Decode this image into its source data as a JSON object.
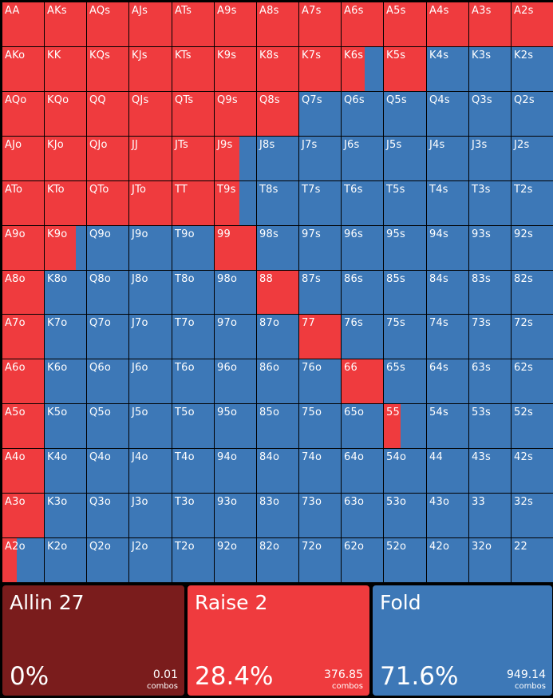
{
  "colors": {
    "raise": "#ef3b3e",
    "fold": "#3d78b7",
    "allin": "#7a1c1c"
  },
  "grid": [
    [
      "AA",
      "AKs",
      "AQs",
      "AJs",
      "ATs",
      "A9s",
      "A8s",
      "A7s",
      "A6s",
      "A5s",
      "A4s",
      "A3s",
      "A2s"
    ],
    [
      "AKo",
      "KK",
      "KQs",
      "KJs",
      "KTs",
      "K9s",
      "K8s",
      "K7s",
      "K6s",
      "K5s",
      "K4s",
      "K3s",
      "K2s"
    ],
    [
      "AQo",
      "KQo",
      "QQ",
      "QJs",
      "QTs",
      "Q9s",
      "Q8s",
      "Q7s",
      "Q6s",
      "Q5s",
      "Q4s",
      "Q3s",
      "Q2s"
    ],
    [
      "AJo",
      "KJo",
      "QJo",
      "JJ",
      "JTs",
      "J9s",
      "J8s",
      "J7s",
      "J6s",
      "J5s",
      "J4s",
      "J3s",
      "J2s"
    ],
    [
      "ATo",
      "KTo",
      "QTo",
      "JTo",
      "TT",
      "T9s",
      "T8s",
      "T7s",
      "T6s",
      "T5s",
      "T4s",
      "T3s",
      "T2s"
    ],
    [
      "A9o",
      "K9o",
      "Q9o",
      "J9o",
      "T9o",
      "99",
      "98s",
      "97s",
      "96s",
      "95s",
      "94s",
      "93s",
      "92s"
    ],
    [
      "A8o",
      "K8o",
      "Q8o",
      "J8o",
      "T8o",
      "98o",
      "88",
      "87s",
      "86s",
      "85s",
      "84s",
      "83s",
      "82s"
    ],
    [
      "A7o",
      "K7o",
      "Q7o",
      "J7o",
      "T7o",
      "97o",
      "87o",
      "77",
      "76s",
      "75s",
      "74s",
      "73s",
      "72s"
    ],
    [
      "A6o",
      "K6o",
      "Q6o",
      "J6o",
      "T6o",
      "96o",
      "86o",
      "76o",
      "66",
      "65s",
      "64s",
      "63s",
      "62s"
    ],
    [
      "A5o",
      "K5o",
      "Q5o",
      "J5o",
      "T5o",
      "95o",
      "85o",
      "75o",
      "65o",
      "55",
      "54s",
      "53s",
      "52s"
    ],
    [
      "A4o",
      "K4o",
      "Q4o",
      "J4o",
      "T4o",
      "94o",
      "84o",
      "74o",
      "64o",
      "54o",
      "44",
      "43s",
      "42s"
    ],
    [
      "A3o",
      "K3o",
      "Q3o",
      "J3o",
      "T3o",
      "93o",
      "83o",
      "73o",
      "63o",
      "53o",
      "43o",
      "33",
      "32s"
    ],
    [
      "A2o",
      "K2o",
      "Q2o",
      "J2o",
      "T2o",
      "92o",
      "82o",
      "72o",
      "62o",
      "52o",
      "42o",
      "32o",
      "22"
    ]
  ],
  "raise_freq": {
    "AA": 1,
    "AKs": 1,
    "AQs": 1,
    "AJs": 1,
    "ATs": 1,
    "A9s": 1,
    "A8s": 1,
    "A7s": 1,
    "A6s": 1,
    "A5s": 1,
    "A4s": 1,
    "A3s": 1,
    "A2s": 1,
    "AKo": 1,
    "KK": 1,
    "KQs": 1,
    "KJs": 1,
    "KTs": 1,
    "K9s": 1,
    "K8s": 1,
    "K7s": 1,
    "K6s": 0.55,
    "K5s": 1,
    "AQo": 1,
    "KQo": 1,
    "QQ": 1,
    "QJs": 1,
    "QTs": 1,
    "Q9s": 1,
    "Q8s": 1,
    "AJo": 1,
    "KJo": 1,
    "QJo": 1,
    "JJ": 1,
    "JTs": 1,
    "J9s": 0.6,
    "ATo": 1,
    "KTo": 1,
    "QTo": 1,
    "JTo": 1,
    "TT": 1,
    "T9s": 0.6,
    "A9o": 1,
    "K9o": 0.75,
    "99": 1,
    "A8o": 1,
    "88": 1,
    "A7o": 1,
    "77": 1,
    "A6o": 1,
    "66": 1,
    "A5o": 1,
    "55": 0.4,
    "A4o": 1,
    "A3o": 1,
    "A2o": 0.35
  },
  "actions": [
    {
      "key": "allin",
      "name": "Allin 27",
      "pct": "0%",
      "combos": "0.01",
      "combos_label": "combos"
    },
    {
      "key": "raise",
      "name": "Raise 2",
      "pct": "28.4%",
      "combos": "376.85",
      "combos_label": "combos"
    },
    {
      "key": "fold",
      "name": "Fold",
      "pct": "71.6%",
      "combos": "949.14",
      "combos_label": "combos"
    }
  ]
}
